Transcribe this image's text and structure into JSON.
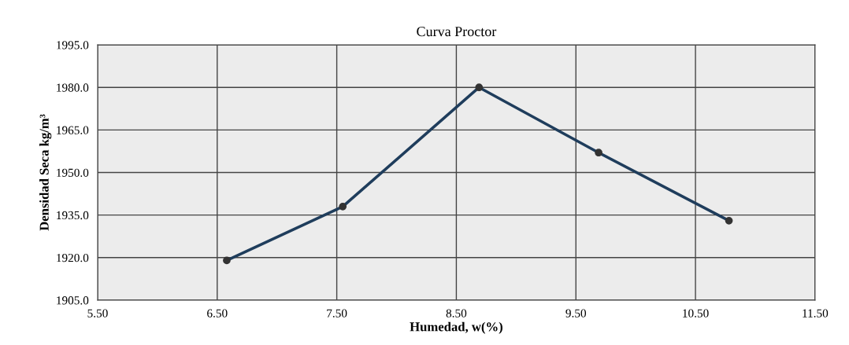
{
  "chart_data": {
    "type": "line",
    "title": "Curva Proctor",
    "xlabel": "Humedad, w(%)",
    "ylabel": "Densidad Seca kg/m³",
    "x": [
      6.58,
      7.55,
      8.69,
      9.69,
      10.78
    ],
    "series": [
      {
        "color": "#1f3d5c",
        "values": [
          1919,
          1938,
          1980,
          1957,
          1933
        ]
      }
    ],
    "xlim": [
      5.5,
      11.5
    ],
    "xticks": [
      {
        "value": 5.5,
        "label": "5.50"
      },
      {
        "value": 6.5,
        "label": "6.50"
      },
      {
        "value": 7.5,
        "label": "7.50"
      },
      {
        "value": 8.5,
        "label": "8.50"
      },
      {
        "value": 9.5,
        "label": "9.50"
      },
      {
        "value": 10.5,
        "label": "10.50"
      },
      {
        "value": 11.5,
        "label": "11.50"
      }
    ],
    "ylim": [
      1905,
      1995
    ],
    "yticks": [
      {
        "value": 1905,
        "label": "1905.0"
      },
      {
        "value": 1920,
        "label": "1920.0"
      },
      {
        "value": 1935,
        "label": "1935.0"
      },
      {
        "value": 1950,
        "label": "1950.0"
      },
      {
        "value": 1965,
        "label": "1965.0"
      },
      {
        "value": 1980,
        "label": "1980.0"
      },
      {
        "value": 1995,
        "label": "1995.0"
      }
    ],
    "grid": true,
    "marker": "circle",
    "line_style": "solid",
    "legend": false
  }
}
